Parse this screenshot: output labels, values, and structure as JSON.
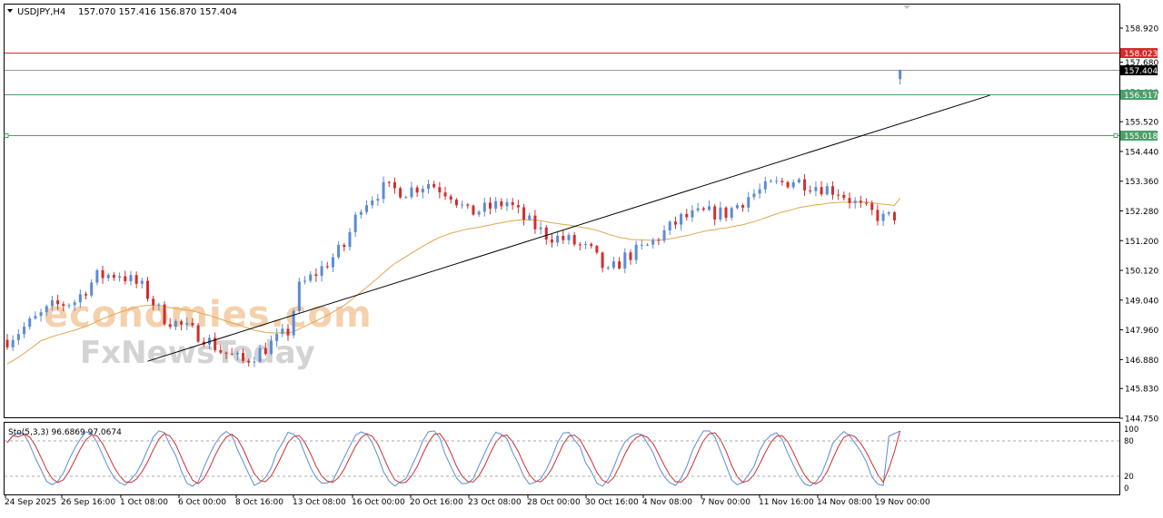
{
  "header": {
    "symbol_label": "USDJPY,H4",
    "ohlc_label": "157.070 157.416 156.870 157.404"
  },
  "watermark": {
    "line1": "economies.com",
    "line2": "FxNewsToday"
  },
  "colors": {
    "bull": "#5b8bd6",
    "bear": "#d12e2e",
    "ma": "#e3a64d",
    "trendline": "#000000",
    "resistance": "#d42b2b",
    "support": "#4aa06a",
    "current": "#999999",
    "stoch_main": "#5b8bd6",
    "stoch_signal": "#d12e2e"
  },
  "chart_data": [
    {
      "type": "candlestick",
      "title": "USDJPY,H4",
      "ohlc_last": {
        "open": 157.07,
        "high": 157.416,
        "low": 156.87,
        "close": 157.404
      },
      "ylim": [
        144.75,
        159.4
      ],
      "y_ticks": [
        "158.920",
        "157.680",
        "156.600",
        "155.520",
        "154.440",
        "153.360",
        "152.280",
        "151.200",
        "150.120",
        "149.040",
        "147.960",
        "146.880",
        "145.830",
        "144.750"
      ],
      "x_ticks": [
        "24 Sep 2025",
        "26 Sep 16:00",
        "1 Oct 08:00",
        "6 Oct 00:00",
        "8 Oct 16:00",
        "13 Oct 08:00",
        "16 Oct 00:00",
        "20 Oct 16:00",
        "23 Oct 08:00",
        "28 Oct 00:00",
        "30 Oct 16:00",
        "4 Nov 08:00",
        "7 Nov 00:00",
        "11 Nov 16:00",
        "14 Nov 08:00",
        "19 Nov 00:00"
      ],
      "bars_count": 160,
      "path_anchors": [
        [
          0,
          147.6
        ],
        [
          4,
          148.2
        ],
        [
          8,
          148.8
        ],
        [
          12,
          149.0
        ],
        [
          16,
          149.9
        ],
        [
          20,
          150.0
        ],
        [
          24,
          149.5
        ],
        [
          28,
          148.4
        ],
        [
          32,
          148.0
        ],
        [
          35,
          147.7
        ],
        [
          38,
          147.2
        ],
        [
          42,
          146.8
        ],
        [
          46,
          147.3
        ],
        [
          50,
          147.9
        ],
        [
          52,
          149.5
        ],
        [
          56,
          150.2
        ],
        [
          60,
          151.0
        ],
        [
          63,
          152.5
        ],
        [
          67,
          153.1
        ],
        [
          71,
          153.0
        ],
        [
          75,
          153.3
        ],
        [
          79,
          152.9
        ],
        [
          82,
          152.2
        ],
        [
          86,
          152.4
        ],
        [
          89,
          152.6
        ],
        [
          92,
          152.0
        ],
        [
          96,
          151.4
        ],
        [
          100,
          151.2
        ],
        [
          104,
          150.8
        ],
        [
          107,
          150.0
        ],
        [
          110,
          150.6
        ],
        [
          114,
          151.0
        ],
        [
          117,
          151.5
        ],
        [
          120,
          152.0
        ],
        [
          124,
          152.2
        ],
        [
          128,
          152.2
        ],
        [
          132,
          152.8
        ],
        [
          136,
          153.2
        ],
        [
          140,
          153.4
        ],
        [
          144,
          153.2
        ],
        [
          148,
          153.0
        ],
        [
          152,
          152.4
        ],
        [
          156,
          152.0
        ],
        [
          158,
          152.1
        ],
        [
          160,
          152.3
        ]
      ],
      "price_lines": [
        {
          "name": "resistance",
          "value": 158.023
        },
        {
          "name": "current",
          "value": 157.404
        },
        {
          "name": "support-1",
          "value": 156.517
        },
        {
          "name": "support-2",
          "value": 155.018
        }
      ],
      "price_labels": [
        "158.023",
        "157.404",
        "156.517",
        "155.018"
      ],
      "moving_average": {
        "period_note": "",
        "color": "#e3a64d"
      },
      "trendline": {
        "from": {
          "bar": 25,
          "price": 146.82
        },
        "to": {
          "bar": 175,
          "price": 156.48
        }
      }
    },
    {
      "type": "line",
      "title": "Sto(5,3,3) 96.6869 97.0674",
      "ylim": [
        0,
        100
      ],
      "y_ticks": [
        "100",
        "80",
        "20",
        "0"
      ],
      "levels": [
        80,
        20
      ],
      "series": [
        {
          "name": "",
          "last": 96.6869
        },
        {
          "name": "",
          "last": 97.0674
        }
      ]
    }
  ]
}
